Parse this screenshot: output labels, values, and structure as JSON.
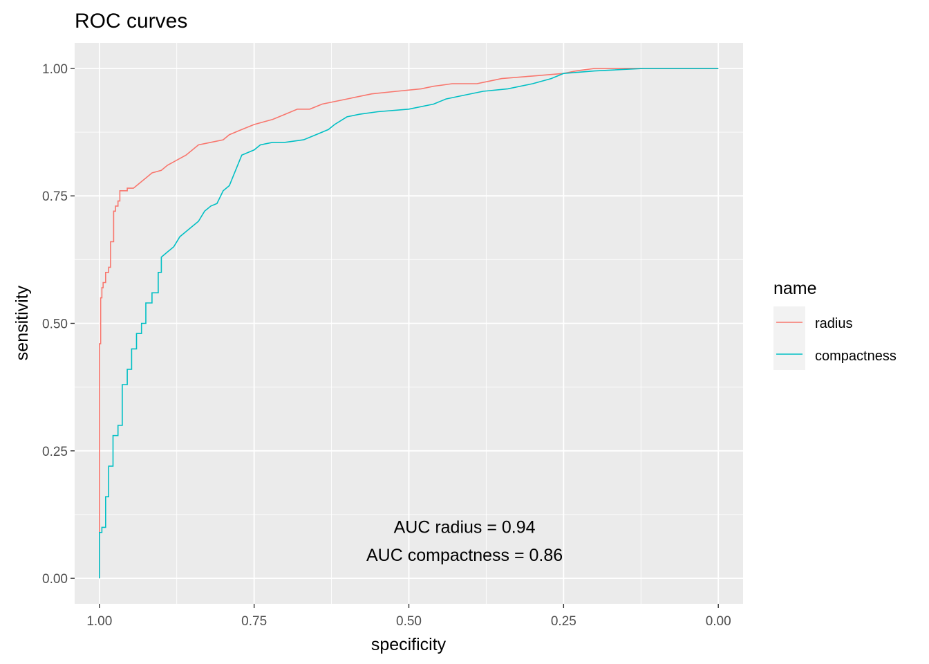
{
  "chart_data": {
    "type": "line",
    "title": "ROC curves",
    "xlabel": "specificity",
    "ylabel": "sensitivity",
    "xlim": [
      1.04,
      -0.04
    ],
    "ylim": [
      -0.05,
      1.05
    ],
    "x_reversed": true,
    "x_ticks": [
      1.0,
      0.75,
      0.5,
      0.25,
      0.0
    ],
    "x_tick_labels": [
      "1.00",
      "0.75",
      "0.50",
      "0.25",
      "0.00"
    ],
    "y_ticks": [
      0.0,
      0.25,
      0.5,
      0.75,
      1.0
    ],
    "y_tick_labels": [
      "0.00",
      "0.25",
      "0.50",
      "0.75",
      "1.00"
    ],
    "grid": true,
    "legend": {
      "title": "name",
      "position": "right",
      "entries": [
        "radius",
        "compactness"
      ]
    },
    "series": [
      {
        "name": "radius",
        "color": "#F8766D",
        "points": [
          [
            1.0,
            0.0
          ],
          [
            1.0,
            0.46
          ],
          [
            0.998,
            0.46
          ],
          [
            0.998,
            0.55
          ],
          [
            0.996,
            0.55
          ],
          [
            0.996,
            0.57
          ],
          [
            0.994,
            0.57
          ],
          [
            0.994,
            0.58
          ],
          [
            0.99,
            0.58
          ],
          [
            0.99,
            0.6
          ],
          [
            0.985,
            0.6
          ],
          [
            0.985,
            0.61
          ],
          [
            0.982,
            0.61
          ],
          [
            0.982,
            0.66
          ],
          [
            0.977,
            0.66
          ],
          [
            0.977,
            0.72
          ],
          [
            0.974,
            0.72
          ],
          [
            0.974,
            0.73
          ],
          [
            0.97,
            0.73
          ],
          [
            0.97,
            0.74
          ],
          [
            0.967,
            0.74
          ],
          [
            0.967,
            0.76
          ],
          [
            0.955,
            0.76
          ],
          [
            0.955,
            0.765
          ],
          [
            0.945,
            0.765
          ],
          [
            0.935,
            0.775
          ],
          [
            0.925,
            0.785
          ],
          [
            0.915,
            0.795
          ],
          [
            0.9,
            0.8
          ],
          [
            0.89,
            0.81
          ],
          [
            0.875,
            0.82
          ],
          [
            0.86,
            0.83
          ],
          [
            0.84,
            0.85
          ],
          [
            0.82,
            0.855
          ],
          [
            0.8,
            0.86
          ],
          [
            0.79,
            0.87
          ],
          [
            0.77,
            0.88
          ],
          [
            0.75,
            0.89
          ],
          [
            0.72,
            0.9
          ],
          [
            0.7,
            0.91
          ],
          [
            0.68,
            0.92
          ],
          [
            0.66,
            0.92
          ],
          [
            0.64,
            0.93
          ],
          [
            0.6,
            0.94
          ],
          [
            0.56,
            0.95
          ],
          [
            0.52,
            0.955
          ],
          [
            0.48,
            0.96
          ],
          [
            0.46,
            0.965
          ],
          [
            0.43,
            0.97
          ],
          [
            0.39,
            0.97
          ],
          [
            0.37,
            0.975
          ],
          [
            0.35,
            0.98
          ],
          [
            0.3,
            0.985
          ],
          [
            0.25,
            0.99
          ],
          [
            0.23,
            0.995
          ],
          [
            0.2,
            1.0
          ],
          [
            0.0,
            1.0
          ]
        ]
      },
      {
        "name": "compactness",
        "color": "#00BFC4",
        "points": [
          [
            1.0,
            0.0
          ],
          [
            1.0,
            0.09
          ],
          [
            0.996,
            0.09
          ],
          [
            0.996,
            0.1
          ],
          [
            0.99,
            0.1
          ],
          [
            0.99,
            0.16
          ],
          [
            0.985,
            0.16
          ],
          [
            0.985,
            0.22
          ],
          [
            0.978,
            0.22
          ],
          [
            0.978,
            0.28
          ],
          [
            0.97,
            0.28
          ],
          [
            0.97,
            0.3
          ],
          [
            0.963,
            0.3
          ],
          [
            0.963,
            0.38
          ],
          [
            0.955,
            0.38
          ],
          [
            0.955,
            0.41
          ],
          [
            0.948,
            0.41
          ],
          [
            0.948,
            0.45
          ],
          [
            0.94,
            0.45
          ],
          [
            0.94,
            0.48
          ],
          [
            0.932,
            0.48
          ],
          [
            0.932,
            0.5
          ],
          [
            0.925,
            0.5
          ],
          [
            0.925,
            0.54
          ],
          [
            0.915,
            0.54
          ],
          [
            0.915,
            0.56
          ],
          [
            0.905,
            0.56
          ],
          [
            0.905,
            0.6
          ],
          [
            0.9,
            0.6
          ],
          [
            0.9,
            0.63
          ],
          [
            0.89,
            0.64
          ],
          [
            0.88,
            0.65
          ],
          [
            0.87,
            0.67
          ],
          [
            0.86,
            0.68
          ],
          [
            0.85,
            0.69
          ],
          [
            0.84,
            0.7
          ],
          [
            0.83,
            0.72
          ],
          [
            0.82,
            0.73
          ],
          [
            0.81,
            0.735
          ],
          [
            0.8,
            0.76
          ],
          [
            0.79,
            0.77
          ],
          [
            0.78,
            0.8
          ],
          [
            0.77,
            0.83
          ],
          [
            0.76,
            0.835
          ],
          [
            0.75,
            0.84
          ],
          [
            0.74,
            0.85
          ],
          [
            0.72,
            0.855
          ],
          [
            0.7,
            0.855
          ],
          [
            0.67,
            0.86
          ],
          [
            0.65,
            0.87
          ],
          [
            0.63,
            0.88
          ],
          [
            0.62,
            0.89
          ],
          [
            0.6,
            0.905
          ],
          [
            0.58,
            0.91
          ],
          [
            0.55,
            0.915
          ],
          [
            0.5,
            0.92
          ],
          [
            0.46,
            0.93
          ],
          [
            0.44,
            0.94
          ],
          [
            0.42,
            0.945
          ],
          [
            0.38,
            0.955
          ],
          [
            0.34,
            0.96
          ],
          [
            0.3,
            0.97
          ],
          [
            0.27,
            0.98
          ],
          [
            0.25,
            0.99
          ],
          [
            0.2,
            0.995
          ],
          [
            0.12,
            1.0
          ],
          [
            0.0,
            1.0
          ]
        ]
      }
    ],
    "annotations": [
      "AUC radius = 0.94",
      "AUC compactness = 0.86"
    ],
    "annotation_anchor": {
      "x": 0.41,
      "y": [
        0.1,
        0.045
      ]
    },
    "panel_background": "#EBEBEB",
    "grid_color": "#FFFFFF"
  }
}
